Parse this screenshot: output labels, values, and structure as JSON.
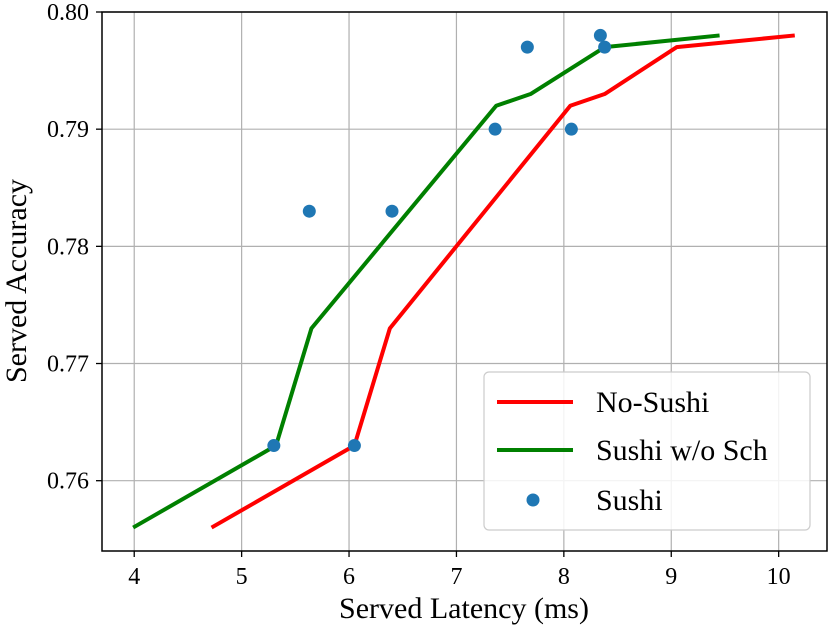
{
  "chart_data": {
    "type": "line",
    "title": "",
    "xlabel": "Served Latency (ms)",
    "ylabel": "Served Accuracy",
    "xlim": [
      3.7,
      10.45
    ],
    "ylim": [
      0.754,
      0.8
    ],
    "xticks": [
      4,
      5,
      6,
      7,
      8,
      9,
      10
    ],
    "xtick_labels": [
      "4",
      "5",
      "6",
      "7",
      "8",
      "9",
      "10"
    ],
    "yticks": [
      0.76,
      0.77,
      0.78,
      0.79,
      0.8
    ],
    "ytick_labels": [
      "0.76",
      "0.77",
      "0.78",
      "0.79",
      "0.80"
    ],
    "grid": true,
    "legend_position": "bottom-right",
    "series": [
      {
        "name": "No-Sushi",
        "kind": "line",
        "color": "#ff0000",
        "x": [
          4.72,
          6.05,
          6.38,
          8.06,
          8.38,
          9.05,
          10.15
        ],
        "y": [
          0.756,
          0.763,
          0.773,
          0.792,
          0.793,
          0.797,
          0.798
        ]
      },
      {
        "name": "Sushi w/o Sch",
        "kind": "line",
        "color": "#008000",
        "x": [
          3.99,
          5.32,
          5.65,
          7.37,
          7.69,
          8.38,
          9.45
        ],
        "y": [
          0.756,
          0.763,
          0.773,
          0.792,
          0.793,
          0.797,
          0.798
        ]
      },
      {
        "name": "Sushi",
        "kind": "scatter",
        "color": "#1f77b4",
        "x": [
          5.3,
          5.63,
          6.05,
          6.4,
          7.36,
          7.66,
          8.07,
          8.34,
          8.38
        ],
        "y": [
          0.763,
          0.783,
          0.763,
          0.783,
          0.79,
          0.797,
          0.79,
          0.798,
          0.797
        ]
      }
    ]
  }
}
